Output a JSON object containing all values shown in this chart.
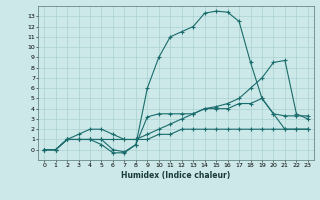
{
  "xlabel": "Humidex (Indice chaleur)",
  "bg_color": "#cce8e8",
  "grid_color": "#aad0d0",
  "line_color": "#1a6b6b",
  "xlim": [
    -0.5,
    23.5
  ],
  "ylim": [
    -1,
    14
  ],
  "xticks": [
    0,
    1,
    2,
    3,
    4,
    5,
    6,
    7,
    8,
    9,
    10,
    11,
    12,
    13,
    14,
    15,
    16,
    17,
    18,
    19,
    20,
    21,
    22,
    23
  ],
  "yticks": [
    0,
    1,
    2,
    3,
    4,
    5,
    6,
    7,
    8,
    9,
    10,
    11,
    12,
    13
  ],
  "curve1_x": [
    0,
    1,
    2,
    3,
    4,
    5,
    6,
    7,
    8,
    9,
    10,
    11,
    12,
    13,
    14,
    15,
    16,
    17,
    18,
    19,
    20,
    21,
    22,
    23
  ],
  "curve1_y": [
    0,
    0,
    1,
    1,
    1,
    1,
    0,
    -0.2,
    0.5,
    6,
    9,
    11,
    11.5,
    12,
    13.3,
    13.5,
    13.4,
    12.5,
    8.5,
    5,
    3.5,
    2,
    2,
    2
  ],
  "curve2_x": [
    0,
    1,
    2,
    3,
    4,
    5,
    6,
    7,
    8,
    9,
    10,
    11,
    12,
    13,
    14,
    15,
    16,
    17,
    18,
    19,
    20,
    21,
    22,
    23
  ],
  "curve2_y": [
    0,
    0,
    1,
    1,
    1,
    0.5,
    -0.3,
    -0.3,
    0.5,
    3.2,
    3.5,
    3.5,
    3.5,
    3.5,
    4,
    4.2,
    4.5,
    5,
    6,
    7,
    8.5,
    8.7,
    3.5,
    3
  ],
  "curve3_x": [
    0,
    1,
    2,
    3,
    4,
    5,
    6,
    7,
    8,
    9,
    10,
    11,
    12,
    13,
    14,
    15,
    16,
    17,
    18,
    19,
    20,
    21,
    22,
    23
  ],
  "curve3_y": [
    0,
    0,
    1,
    1.5,
    2,
    2,
    1.5,
    1,
    1,
    1.5,
    2,
    2.5,
    3,
    3.5,
    4,
    4,
    4,
    4.5,
    4.5,
    5,
    3.5,
    3.3,
    3.3,
    3.3
  ],
  "curve4_x": [
    0,
    1,
    2,
    3,
    4,
    5,
    6,
    7,
    8,
    9,
    10,
    11,
    12,
    13,
    14,
    15,
    16,
    17,
    18,
    19,
    20,
    21,
    22,
    23
  ],
  "curve4_y": [
    0,
    0,
    1,
    1,
    1,
    1,
    1,
    1,
    1,
    1,
    1.5,
    1.5,
    2,
    2,
    2,
    2,
    2,
    2,
    2,
    2,
    2,
    2,
    2,
    2
  ]
}
